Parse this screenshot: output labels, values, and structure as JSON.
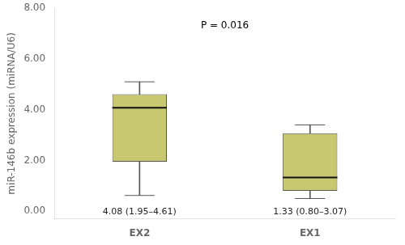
{
  "chart_data": {
    "type": "box",
    "categories": [
      "EX2",
      "EX1"
    ],
    "median": [
      4.08,
      1.33
    ],
    "q1": [
      1.95,
      0.8
    ],
    "q3": [
      4.61,
      3.07
    ],
    "whisker_low": [
      0.62,
      0.5
    ],
    "whisker_high": [
      5.1,
      3.4
    ],
    "value_labels": [
      "4.08 (1.95–4.61)",
      "1.33 (0.80–3.07)"
    ],
    "color": "#c8c870",
    "ylabel": "miR-146b expression (miRNA/U6)",
    "annotation": "P = 0.016",
    "ylim": [
      -0.3,
      8.0
    ],
    "yticks": [
      {
        "value": 0,
        "label": "0.00"
      },
      {
        "value": 2,
        "label": "2.00"
      },
      {
        "value": 4,
        "label": "4.00"
      },
      {
        "value": 6,
        "label": "6.00"
      },
      {
        "value": 8,
        "label": "8.00"
      }
    ],
    "grid": false
  }
}
